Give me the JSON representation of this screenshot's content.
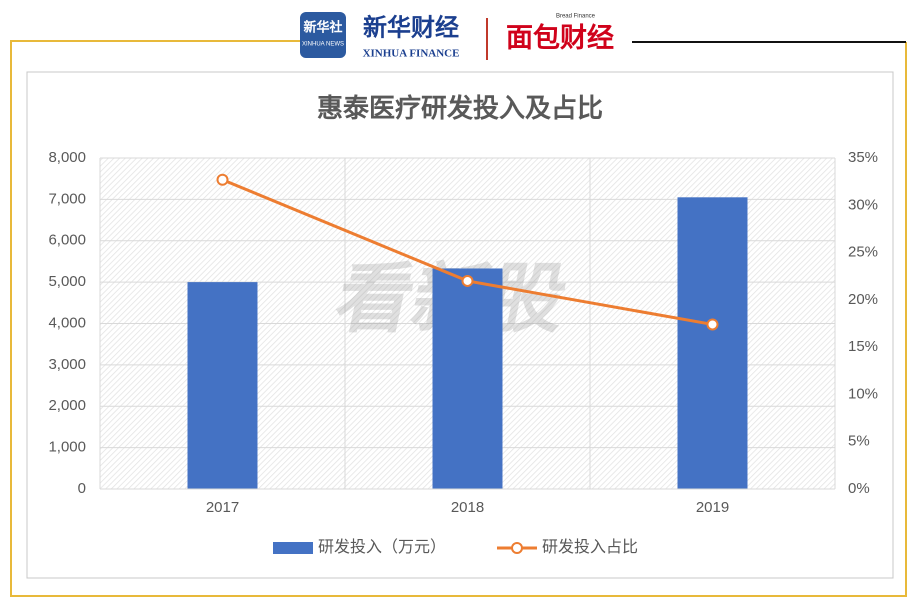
{
  "header": {
    "logo1_cn": "新华社",
    "logo1_en": "XINHUA NEWS",
    "logo2_cn": "新华财经",
    "logo2_en": "XINHUA FINANCE",
    "logo3_en": "Bread Finance",
    "logo3_cn": "面包财经"
  },
  "watermark": "看新股",
  "chart_data": {
    "type": "bar",
    "title": "惠泰医疗研发投入及占比",
    "categories": [
      "2017",
      "2018",
      "2019"
    ],
    "series": [
      {
        "name": "研发投入（万元）",
        "type": "bar",
        "color": "#4472c4",
        "values": [
          5000,
          5330,
          7050
        ]
      },
      {
        "name": "研发投入占比",
        "type": "line",
        "axis": "y2",
        "color": "#ed7d31",
        "values": [
          32.7,
          22.0,
          17.4
        ]
      }
    ],
    "ylim": [
      0,
      8000
    ],
    "yticks": [
      0,
      {
        "value": 1000,
        "label": "1,000"
      },
      {
        "value": 2000,
        "label": "2,000"
      },
      {
        "value": 3000,
        "label": "3,000"
      },
      {
        "value": 4000,
        "label": "4,000"
      },
      {
        "value": 5000,
        "label": "5,000"
      },
      {
        "value": 6000,
        "label": "6,000"
      },
      {
        "value": 7000,
        "label": "7,000"
      },
      {
        "value": 8000,
        "label": "8,000"
      }
    ],
    "y2lim": [
      0,
      35
    ],
    "y2ticks": [
      {
        "value": 0,
        "label": "0%"
      },
      {
        "value": 5,
        "label": "5%"
      },
      {
        "value": 10,
        "label": "10%"
      },
      {
        "value": 15,
        "label": "15%"
      },
      {
        "value": 20,
        "label": "20%"
      },
      {
        "value": 25,
        "label": "25%"
      },
      {
        "value": 30,
        "label": "30%"
      },
      {
        "value": 35,
        "label": "35%"
      }
    ],
    "grid": true,
    "legend": "bottom"
  }
}
